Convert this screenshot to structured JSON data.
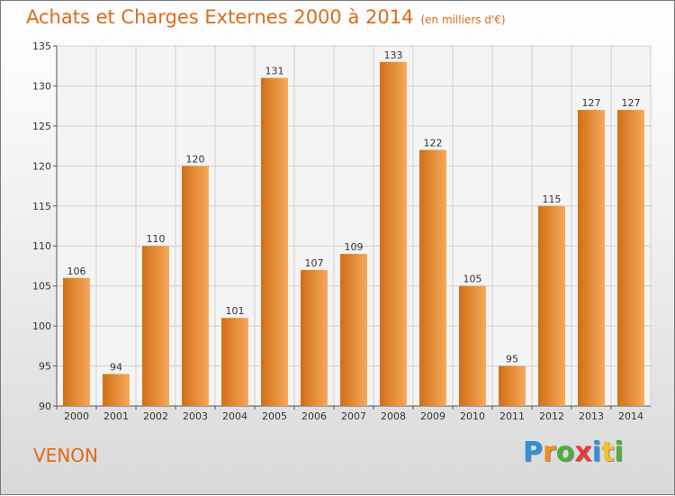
{
  "header": {
    "title": "Achats et Charges Externes 2000 à 2014",
    "subtitle": "(en milliers d'€)"
  },
  "commune": "VENON",
  "logo": {
    "text": "Proxiti",
    "letters": [
      "P",
      "r",
      "o",
      "x",
      "i",
      "t",
      "i"
    ],
    "colors": [
      "#2f8fd8",
      "#f08c1a",
      "#4caf3c",
      "#e83a3a",
      "#2f8fd8",
      "#f2c12e",
      "#4caf3c"
    ]
  },
  "colors": {
    "accent": "#e06a1b",
    "bar_light": "#f7a95a",
    "bar_dark": "#cf6f17",
    "grid": "#cfcfcf"
  },
  "chart_data": {
    "type": "bar",
    "categories": [
      "2000",
      "2001",
      "2002",
      "2003",
      "2004",
      "2005",
      "2006",
      "2007",
      "2008",
      "2009",
      "2010",
      "2011",
      "2012",
      "2013",
      "2014"
    ],
    "values": [
      106,
      94,
      110,
      120,
      101,
      131,
      107,
      109,
      133,
      122,
      105,
      95,
      115,
      127,
      127
    ],
    "ylim": [
      90,
      135
    ],
    "yticks": [
      90,
      95,
      100,
      105,
      110,
      115,
      120,
      125,
      130,
      135
    ],
    "grid": true,
    "data_labels": true
  }
}
